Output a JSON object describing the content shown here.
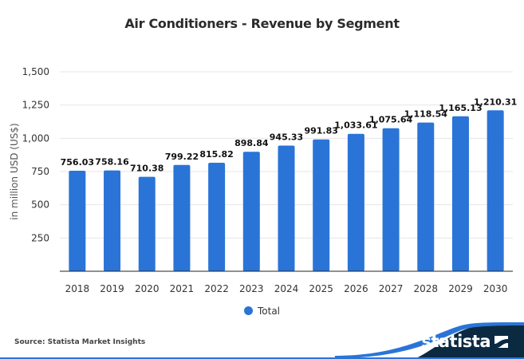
{
  "chart_data": {
    "type": "bar",
    "title": "Air Conditioners - Revenue by Segment",
    "xlabel": "",
    "ylabel": "in million USD (US$)",
    "ylim": [
      0,
      1500
    ],
    "yticks": [
      250,
      500,
      750,
      1000,
      1250,
      1500
    ],
    "ytick_labels": [
      "250",
      "500",
      "750",
      "1,000",
      "1,250",
      "1,500"
    ],
    "grid": true,
    "categories": [
      "2018",
      "2019",
      "2020",
      "2021",
      "2022",
      "2023",
      "2024",
      "2025",
      "2026",
      "2027",
      "2028",
      "2029",
      "2030"
    ],
    "series": [
      {
        "name": "Total",
        "color": "#2a74d8",
        "values": [
          756.03,
          758.16,
          710.38,
          799.22,
          815.82,
          898.84,
          945.33,
          991.83,
          1033.61,
          1075.64,
          1118.54,
          1165.13,
          1210.31
        ],
        "labels": [
          "756.03",
          "758.16",
          "710.38",
          "799.22",
          "815.82",
          "898.84",
          "945.33",
          "991.83",
          "1,033.61",
          "1,075.64",
          "1,118.54",
          "1,165.13",
          "1,210.31"
        ]
      }
    ],
    "legend": {
      "position": "bottom-center",
      "entries": [
        "Total"
      ]
    }
  },
  "footer": {
    "source": "Source: Statista Market Insights",
    "logo_text": "statista",
    "logo_icon": "statista-logo-icon"
  },
  "colors": {
    "bar": "#2a74d8",
    "footer_dark": "#0b2a42",
    "footer_accent": "#2a74d8"
  }
}
